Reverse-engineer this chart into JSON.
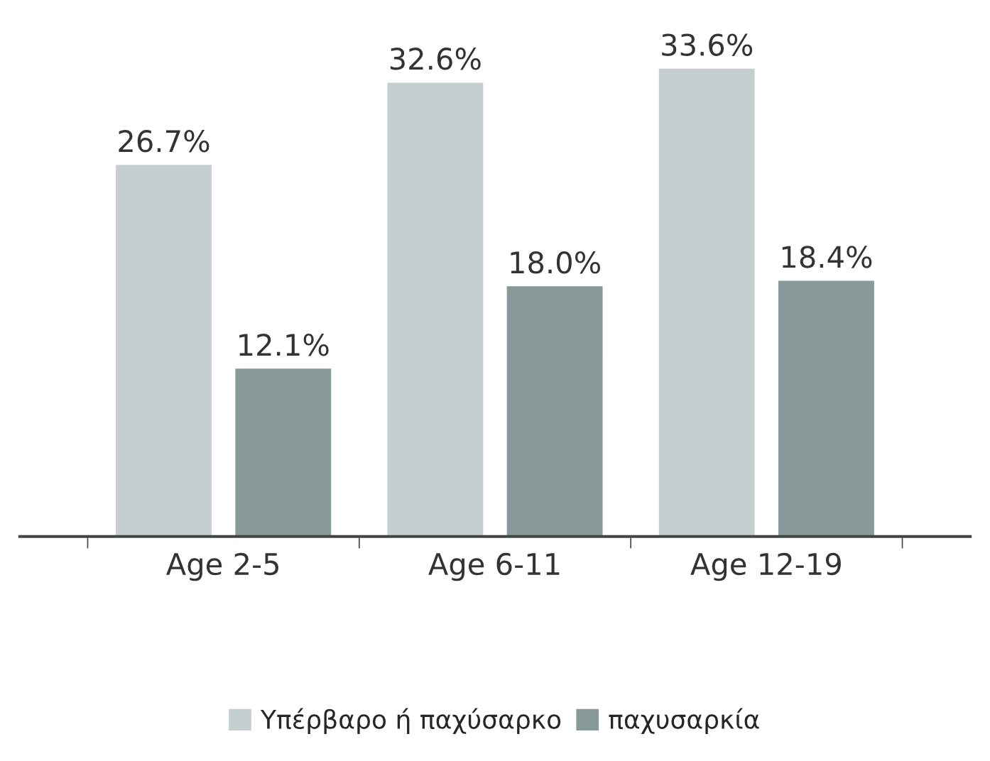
{
  "chart_data": {
    "type": "bar",
    "categories": [
      "Age 2-5",
      "Age 6-11",
      "Age 12-19"
    ],
    "series": [
      {
        "name": "Υπέρβαρο ή παχύσαρκο",
        "color": "#c6cfcf",
        "values": [
          26.7,
          32.6,
          33.6
        ],
        "value_labels": [
          "26.7%",
          "32.6%",
          "33.6%"
        ]
      },
      {
        "name": "παχυσαρκία",
        "color": "#879999",
        "values": [
          12.1,
          18.0,
          18.4
        ],
        "value_labels": [
          "12.1%",
          "18.0%",
          "18.4%"
        ]
      }
    ],
    "legend": "bottom",
    "grid": false
  }
}
